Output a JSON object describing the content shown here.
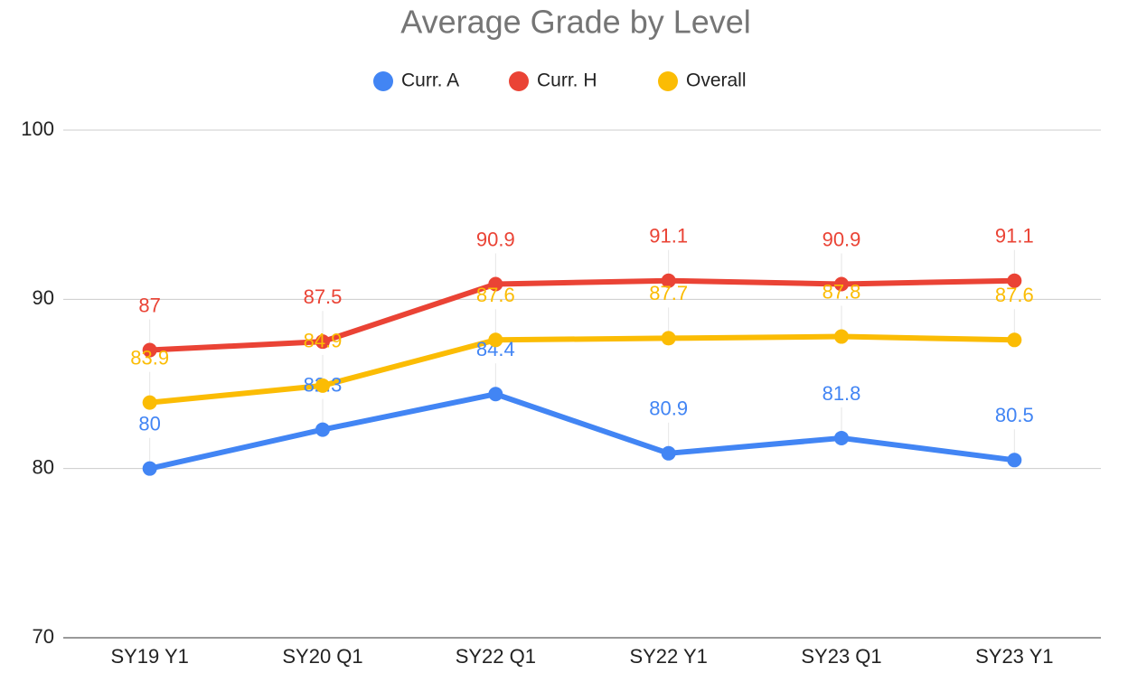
{
  "chart_data": {
    "type": "line",
    "title": "Average Grade by Level",
    "categories": [
      "SY19 Y1",
      "SY20 Q1",
      "SY22 Q1",
      "SY22 Y1",
      "SY23 Q1",
      "SY23 Y1"
    ],
    "series": [
      {
        "name": "Curr. A",
        "color": "#4285f4",
        "values": [
          80,
          82.3,
          84.4,
          80.9,
          81.8,
          80.5
        ]
      },
      {
        "name": "Curr. H",
        "color": "#ea4335",
        "values": [
          87,
          87.5,
          90.9,
          91.1,
          90.9,
          91.1
        ]
      },
      {
        "name": "Overall",
        "color": "#fbbc04",
        "values": [
          83.9,
          84.9,
          87.6,
          87.7,
          87.8,
          87.6
        ]
      }
    ],
    "ylim": [
      70,
      100
    ],
    "yticks": [
      70,
      80,
      90,
      100
    ],
    "grid": true,
    "legend": "top"
  }
}
